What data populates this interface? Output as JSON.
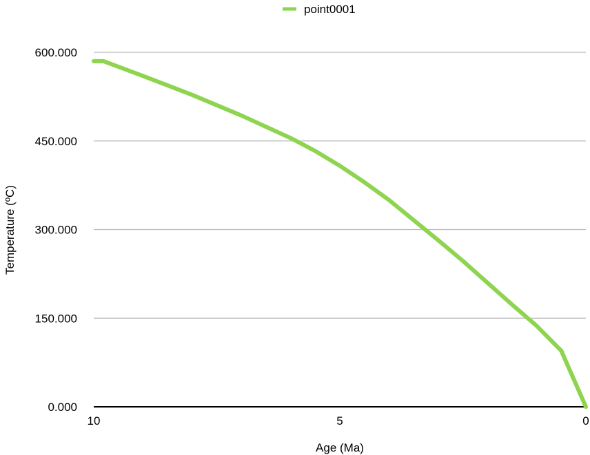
{
  "chart_data": {
    "type": "line",
    "xlabel": "Age (Ma)",
    "ylabel": "Temperature (ºC)",
    "xlim": [
      10,
      0
    ],
    "ylim": [
      0,
      600
    ],
    "x_reversed": true,
    "xticks": [
      {
        "value": 10,
        "label": "10"
      },
      {
        "value": 5,
        "label": "5"
      },
      {
        "value": 0,
        "label": "0"
      }
    ],
    "yticks": [
      {
        "value": 0,
        "label": "0.000"
      },
      {
        "value": 150,
        "label": "150.000"
      },
      {
        "value": 300,
        "label": "300.000"
      },
      {
        "value": 450,
        "label": "450.000"
      },
      {
        "value": 600,
        "label": "600.000"
      }
    ],
    "grid": true,
    "legend_position": "top-center",
    "series": [
      {
        "name": "point0001",
        "color": "#8ed44f",
        "x": [
          10,
          9.8,
          9,
          8,
          7,
          6,
          5.5,
          5,
          4.5,
          4,
          3.5,
          3,
          2.5,
          2,
          1.5,
          1,
          0.5,
          0
        ],
        "y": [
          585,
          585,
          560,
          528,
          493,
          455,
          433,
          408,
          380,
          350,
          316,
          282,
          247,
          210,
          173,
          137,
          95,
          0
        ]
      }
    ]
  }
}
